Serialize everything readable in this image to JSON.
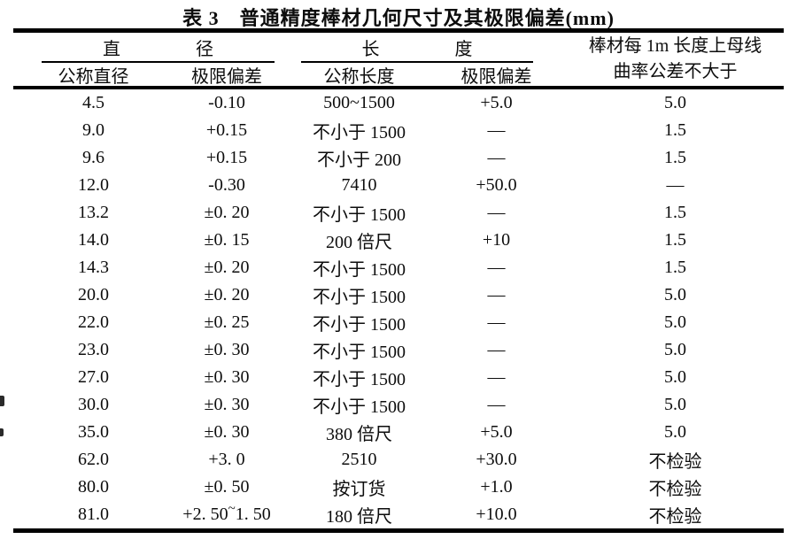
{
  "title": "表 3　普通精度棒材几何尺寸及其极限偏差(mm)",
  "table": {
    "groups": {
      "diameter": "直径",
      "length": "长度",
      "curvature_line1": "棒材每 1m 长度上母线",
      "curvature_line2": "曲率公差不大于"
    },
    "subheaders": {
      "nominal_diameter": "公称直径",
      "diameter_deviation": "极限偏差",
      "nominal_length": "公称长度",
      "length_deviation": "极限偏差"
    },
    "rows": [
      [
        "4.5",
        "-0.10",
        "500~1500",
        "+5.0",
        "5.0"
      ],
      [
        "9.0",
        "+0.15",
        "不小于 1500",
        "—",
        "1.5"
      ],
      [
        "9.6",
        "+0.15",
        "不小于 200",
        "—",
        "1.5"
      ],
      [
        "12.0",
        "-0.30",
        "7410",
        "+50.0",
        "—"
      ],
      [
        "13.2",
        "±0. 20",
        "不小于 1500",
        "—",
        "1.5"
      ],
      [
        "14.0",
        "±0. 15",
        "200 倍尺",
        "+10",
        "1.5"
      ],
      [
        "14.3",
        "±0. 20",
        "不小于 1500",
        "—",
        "1.5"
      ],
      [
        "20.0",
        "±0. 20",
        "不小于 1500",
        "—",
        "5.0"
      ],
      [
        "22.0",
        "±0. 25",
        "不小于 1500",
        "—",
        "5.0"
      ],
      [
        "23.0",
        "±0. 30",
        "不小于 1500",
        "—",
        "5.0"
      ],
      [
        "27.0",
        "±0. 30",
        "不小于 1500",
        "—",
        "5.0"
      ],
      [
        "30.0",
        "±0. 30",
        "不小于 1500",
        "—",
        "5.0"
      ],
      [
        "35.0",
        "±0. 30",
        "380 倍尺",
        "+5.0",
        "5.0"
      ],
      [
        "62.0",
        "+3. 0",
        "2510",
        "+30.0",
        "不检验"
      ],
      [
        "80.0",
        "±0. 50",
        "按订货",
        "+1.0",
        "不检验"
      ],
      [
        "81.0",
        "+2. 50~1. 50",
        "180 倍尺",
        "+10.0",
        "不检验"
      ]
    ]
  }
}
